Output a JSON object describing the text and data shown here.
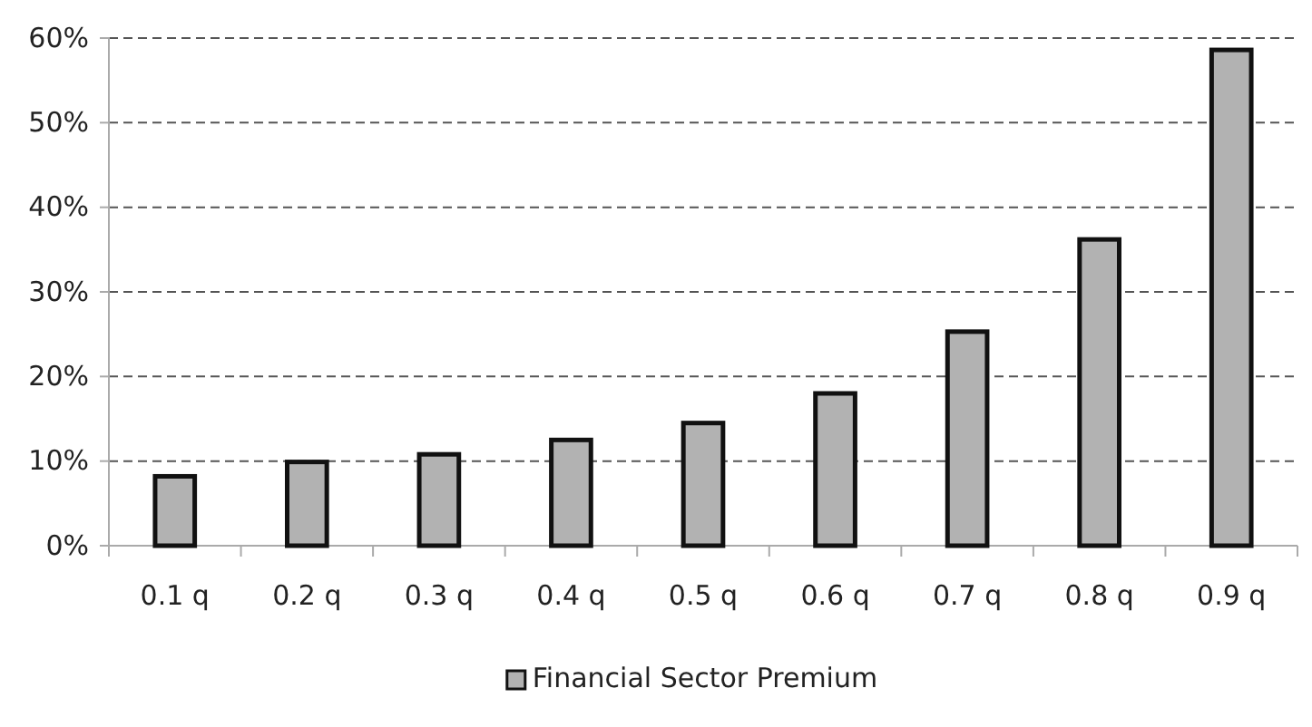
{
  "chart_data": {
    "type": "bar",
    "categories": [
      "0.1 q",
      "0.2 q",
      "0.3 q",
      "0.4 q",
      "0.5 q",
      "0.6 q",
      "0.7 q",
      "0.8 q",
      "0.9 q"
    ],
    "series": [
      {
        "name": "Financial Sector Premium",
        "color": "#b2b2b2",
        "values": [
          8.2,
          9.9,
          10.8,
          12.5,
          14.5,
          18.0,
          25.3,
          36.2,
          58.6
        ]
      }
    ],
    "ylim": [
      0,
      60
    ],
    "yticks": [
      {
        "value": 0,
        "label": "0%"
      },
      {
        "value": 10,
        "label": "10%"
      },
      {
        "value": 20,
        "label": "20%"
      },
      {
        "value": 30,
        "label": "30%"
      },
      {
        "value": 40,
        "label": "40%"
      },
      {
        "value": 50,
        "label": "50%"
      },
      {
        "value": 60,
        "label": "60%"
      }
    ],
    "grid": "y",
    "legend": "bottom"
  }
}
